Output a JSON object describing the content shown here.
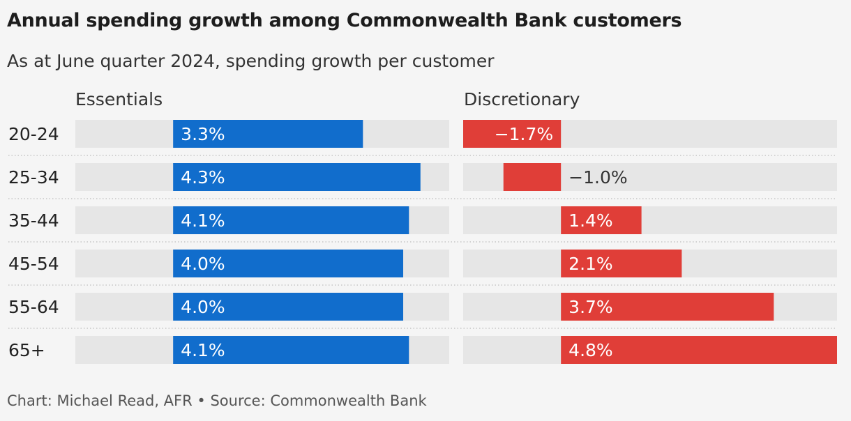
{
  "title": "Annual spending growth among Commonwealth Bank customers",
  "subtitle": "As at June quarter 2024, spending growth per customer",
  "footer": "Chart: Michael Read, AFR • Source: Commonwealth Bank",
  "colors": {
    "essentials": "#116dcc",
    "discretionary": "#e03e38",
    "track": "#e6e6e6",
    "background": "#f5f5f5"
  },
  "chart_data": {
    "type": "bar",
    "orientation": "horizontal",
    "categories": [
      "20-24",
      "25-34",
      "35-44",
      "45-54",
      "55-64",
      "65+"
    ],
    "panels": [
      {
        "name": "Essentials",
        "values": [
          3.3,
          4.3,
          4.1,
          4.0,
          4.0,
          4.1
        ],
        "labels": [
          "3.3%",
          "4.3%",
          "4.1%",
          "4.0%",
          "4.0%",
          "4.1%"
        ],
        "xlim": [
          -1.7,
          4.8
        ]
      },
      {
        "name": "Discretionary",
        "values": [
          -1.7,
          -1.0,
          1.4,
          2.1,
          3.7,
          4.8
        ],
        "labels": [
          "−1.7%",
          "−1.0%",
          "1.4%",
          "2.1%",
          "3.7%",
          "4.8%"
        ],
        "xlim": [
          -1.7,
          4.8
        ]
      }
    ],
    "grid": false,
    "legend": "none"
  }
}
